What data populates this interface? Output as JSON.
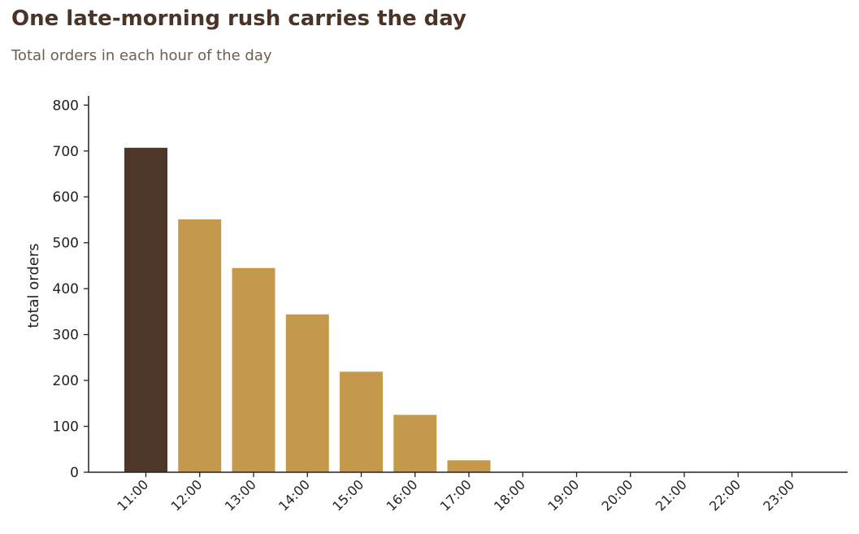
{
  "header": {
    "title": "One late-morning rush carries the day",
    "subtitle": "Total orders in each hour of the day"
  },
  "chart_data": {
    "type": "bar",
    "title": "One late-morning rush carries the day",
    "subtitle": "Total orders in each hour of the day",
    "xlabel": "",
    "ylabel": "total orders",
    "categories": [
      "11:00",
      "12:00",
      "13:00",
      "14:00",
      "15:00",
      "16:00",
      "17:00",
      "18:00",
      "19:00",
      "20:00",
      "21:00",
      "22:00",
      "23:00"
    ],
    "values": [
      707,
      551,
      445,
      344,
      219,
      125,
      26,
      0,
      0,
      0,
      0,
      0,
      0
    ],
    "ylim": [
      0,
      820
    ],
    "yticks": [
      0,
      100,
      200,
      300,
      400,
      500,
      600,
      700,
      800
    ],
    "grid": false,
    "legend": "none",
    "highlight_index": 0,
    "colors": {
      "highlight": "#4e3629",
      "bar": "#c4994b",
      "axis": "#222222",
      "title": "#4a3428",
      "subtitle": "#6e5d52"
    }
  }
}
